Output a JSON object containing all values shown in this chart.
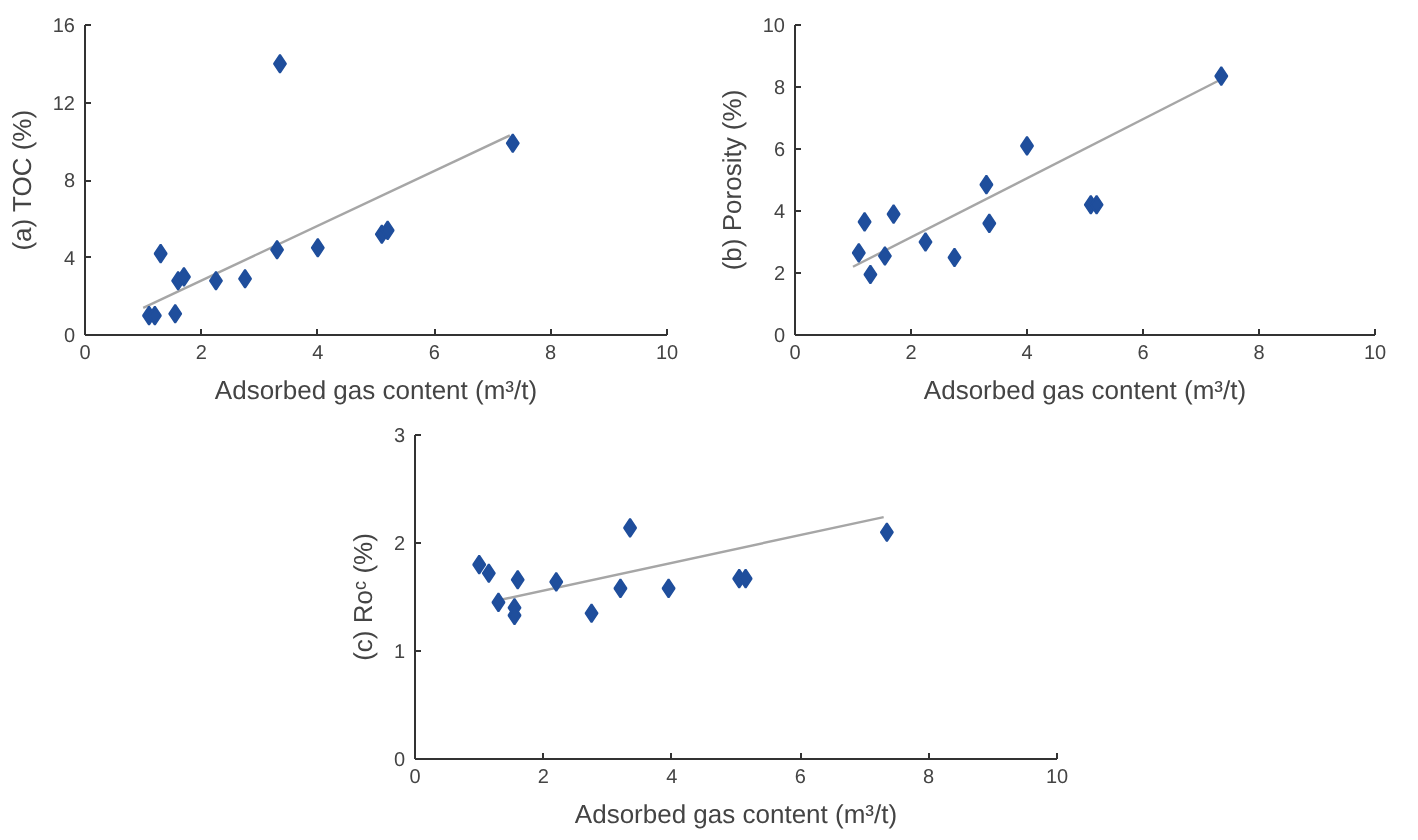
{
  "chart_data": [
    {
      "type": "scatter",
      "xlabel": "Adsorbed gas content (m³/t)",
      "ylabel": "(a) TOC (%)",
      "xlim": [
        0,
        10
      ],
      "xticks": [
        0,
        2,
        4,
        6,
        8,
        10
      ],
      "ylim": [
        0,
        16
      ],
      "yticks": [
        0,
        4,
        8,
        12,
        16
      ],
      "grid": false,
      "series": [
        {
          "type": "line",
          "marker": "none",
          "color": "#a6a6a6",
          "x": [
            1.0,
            7.3
          ],
          "values": [
            1.4,
            10.3
          ]
        },
        {
          "marker": "diamond",
          "color": "#1f4e9c",
          "x": [
            1.1,
            1.2,
            1.3,
            1.55,
            1.6,
            1.7,
            2.25,
            2.75,
            3.3,
            3.35,
            4.0,
            5.1,
            5.2,
            7.35
          ],
          "values": [
            1.0,
            1.0,
            4.2,
            1.1,
            2.8,
            3.0,
            2.8,
            2.9,
            4.4,
            14.0,
            4.5,
            5.2,
            5.4,
            9.9
          ]
        }
      ]
    },
    {
      "type": "scatter",
      "xlabel": "Adsorbed gas content (m³/t)",
      "ylabel": "(b) Porosity (%)",
      "xlim": [
        0,
        10
      ],
      "xticks": [
        0,
        2,
        4,
        6,
        8,
        10
      ],
      "ylim": [
        0,
        10
      ],
      "yticks": [
        0,
        2,
        4,
        6,
        8,
        10
      ],
      "grid": false,
      "series": [
        {
          "type": "line",
          "marker": "none",
          "color": "#a6a6a6",
          "x": [
            1.0,
            7.3
          ],
          "values": [
            2.2,
            8.2
          ]
        },
        {
          "marker": "diamond",
          "color": "#1f4e9c",
          "x": [
            1.1,
            1.2,
            1.3,
            1.55,
            1.7,
            2.25,
            2.75,
            3.3,
            3.35,
            4.0,
            5.1,
            5.2,
            7.35
          ],
          "values": [
            2.65,
            3.65,
            1.95,
            2.55,
            3.9,
            3.0,
            2.5,
            4.85,
            3.6,
            6.1,
            4.2,
            4.2,
            8.35
          ]
        }
      ]
    },
    {
      "type": "scatter",
      "xlabel": "Adsorbed gas content (m³/t)",
      "ylabel": "(c) Roᶜ (%)",
      "xlim": [
        0,
        10
      ],
      "xticks": [
        0,
        2,
        4,
        6,
        8,
        10
      ],
      "ylim": [
        0,
        3
      ],
      "yticks": [
        0,
        1,
        2,
        3
      ],
      "grid": false,
      "series": [
        {
          "type": "line",
          "marker": "none",
          "color": "#a6a6a6",
          "x": [
            1.3,
            7.3
          ],
          "values": [
            1.47,
            2.24
          ]
        },
        {
          "marker": "diamond",
          "color": "#1f4e9c",
          "x": [
            1.0,
            1.15,
            1.3,
            1.55,
            1.55,
            1.6,
            2.2,
            2.75,
            3.2,
            3.35,
            3.95,
            5.05,
            5.15,
            7.35
          ],
          "values": [
            1.8,
            1.72,
            1.45,
            1.4,
            1.33,
            1.66,
            1.64,
            1.35,
            1.58,
            2.14,
            1.58,
            1.67,
            1.67,
            2.1
          ]
        }
      ]
    }
  ]
}
